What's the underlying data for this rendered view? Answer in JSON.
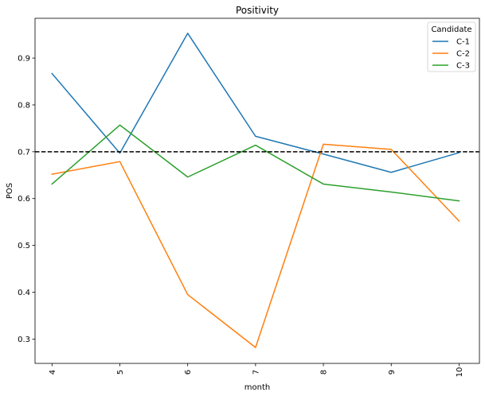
{
  "chart_data": {
    "type": "line",
    "title": "Positivity",
    "xlabel": "month",
    "ylabel": "POS",
    "x": [
      4,
      5,
      6,
      7,
      8,
      9,
      10
    ],
    "xlim": [
      3.75,
      10.3
    ],
    "ylim": [
      0.248,
      0.985
    ],
    "yticks": [
      0.3,
      0.4,
      0.5,
      0.6,
      0.7,
      0.8,
      0.9
    ],
    "xtick_rotation": -90,
    "reference_line": {
      "y": 0.7,
      "style": "dashed",
      "color": "#000000"
    },
    "legend": {
      "title": "Candidate",
      "placement": "top-right"
    },
    "series": [
      {
        "name": "C-1",
        "color": "#1f77b4",
        "values": [
          0.867,
          0.697,
          0.953,
          0.733,
          0.695,
          0.656,
          0.698
        ]
      },
      {
        "name": "C-2",
        "color": "#ff7f0e",
        "values": [
          0.652,
          0.679,
          0.395,
          0.282,
          0.716,
          0.705,
          0.552
        ]
      },
      {
        "name": "C-3",
        "color": "#2ca02c",
        "values": [
          0.631,
          0.757,
          0.646,
          0.714,
          0.631,
          0.614,
          0.595
        ]
      }
    ]
  }
}
